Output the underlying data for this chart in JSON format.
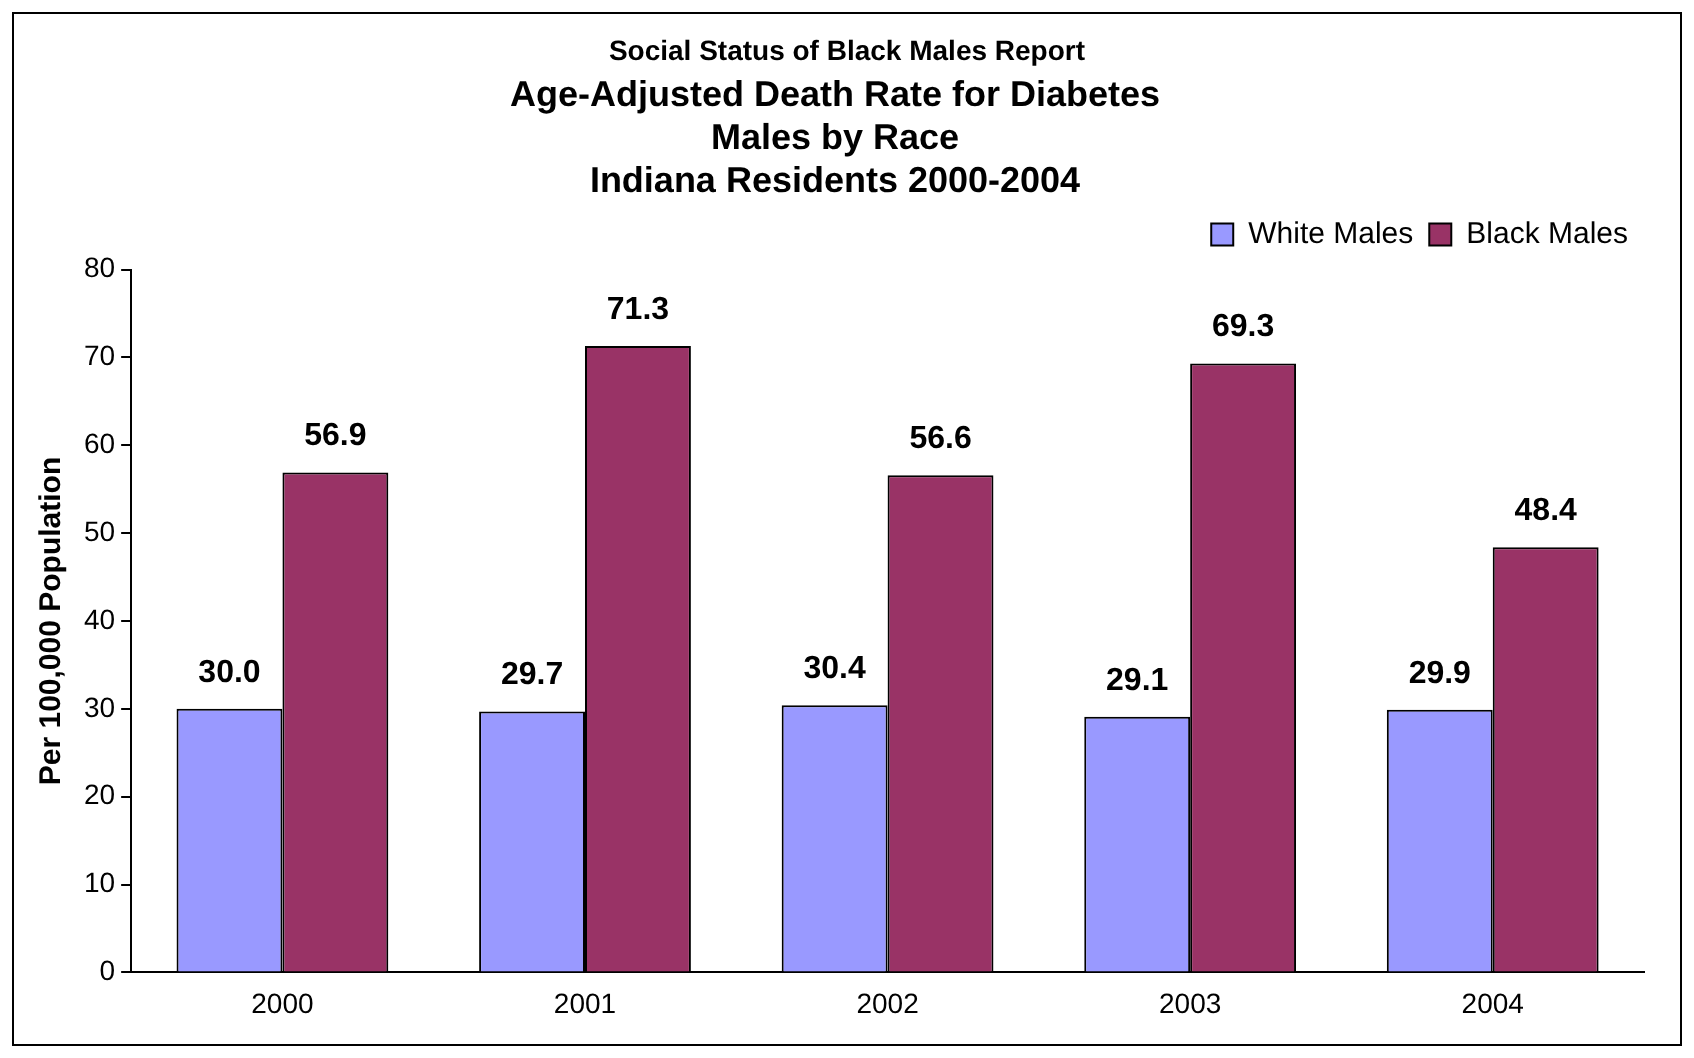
{
  "chart_data": {
    "type": "bar",
    "subtitle": "Social Status of Black Males Report",
    "title": "Age-Adjusted Death Rate for Diabetes\nMales by Race\nIndiana Residents 2000-2004",
    "ylabel": "Per 100,000 Population",
    "categories": [
      "2000",
      "2001",
      "2002",
      "2003",
      "2004"
    ],
    "series": [
      {
        "name": "White Males",
        "color": "#9999ff",
        "values": [
          30.0,
          29.7,
          30.4,
          29.1,
          29.9
        ],
        "value_labels": [
          "30.0",
          "29.7",
          "30.4",
          "29.1",
          "29.9"
        ]
      },
      {
        "name": "Black Males",
        "color": "#993366",
        "values": [
          56.9,
          71.3,
          56.6,
          69.3,
          48.4
        ],
        "value_labels": [
          "56.9",
          "71.3",
          "56.6",
          "69.3",
          "48.4"
        ]
      }
    ],
    "ylim": [
      0,
      80
    ],
    "yticks": [
      0,
      10,
      20,
      30,
      40,
      50,
      60,
      70,
      80
    ],
    "grid": false,
    "legend": "top right"
  }
}
